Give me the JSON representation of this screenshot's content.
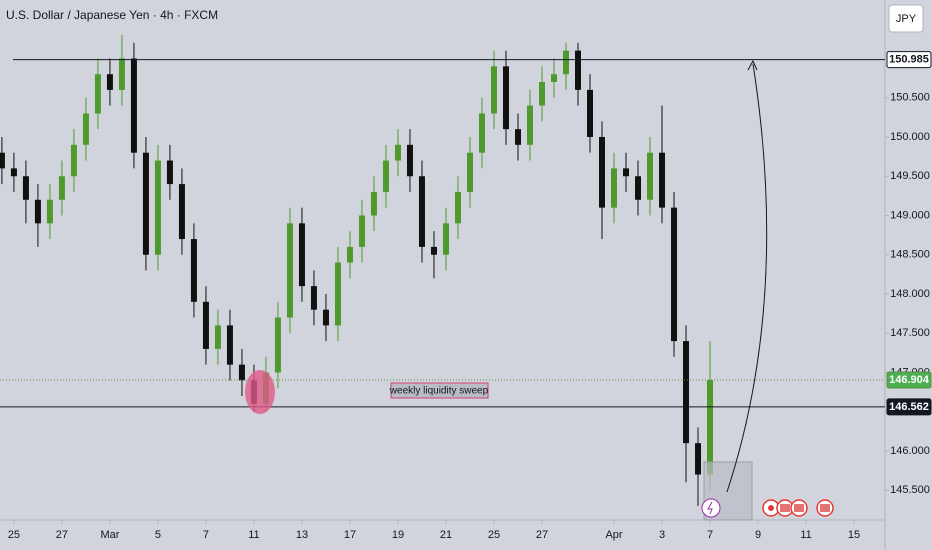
{
  "chart_data": {
    "type": "candlestick",
    "title": "U.S. Dollar / Japanese Yen · 4h · FXCM",
    "up_color": "#4e9a2e",
    "down_color": "#111111",
    "x": [
      -0.5,
      0,
      0.5,
      1,
      1.5,
      2,
      2.5,
      3,
      3.5,
      4,
      4.5,
      5,
      5.5,
      6,
      6.5,
      7,
      7.5,
      8,
      8.5,
      9,
      9.5,
      10,
      10.5,
      11,
      11.5,
      12,
      12.5,
      13,
      13.5,
      14,
      14.5,
      15,
      15.5,
      16,
      16.5,
      17,
      17.5,
      18,
      18.5,
      19,
      19.5,
      20,
      20.5,
      21,
      21.5,
      22,
      22.5,
      23,
      23.5,
      24,
      24.5,
      25,
      25.5,
      26,
      26.5,
      27,
      27.5,
      28,
      28.5,
      29
    ],
    "open": [
      149.8,
      149.6,
      149.5,
      149.2,
      148.9,
      149.2,
      149.5,
      149.9,
      150.3,
      150.8,
      150.6,
      151.0,
      149.8,
      148.5,
      149.7,
      149.4,
      148.7,
      147.9,
      147.3,
      147.6,
      147.1,
      146.9,
      146.6,
      147.0,
      147.7,
      148.9,
      148.1,
      147.8,
      147.6,
      148.4,
      148.6,
      149.0,
      149.3,
      149.7,
      149.9,
      149.5,
      148.6,
      148.5,
      148.9,
      149.3,
      149.8,
      150.3,
      150.9,
      150.1,
      149.9,
      150.4,
      150.7,
      150.8,
      151.1,
      150.6,
      150.0,
      149.1,
      149.6,
      149.5,
      149.2,
      149.8,
      149.1,
      147.4,
      146.1,
      145.7
    ],
    "high": [
      150.0,
      149.8,
      149.7,
      149.4,
      149.4,
      149.7,
      150.1,
      150.5,
      151.0,
      151.0,
      151.3,
      151.2,
      150.0,
      149.9,
      149.9,
      149.6,
      148.9,
      148.1,
      147.8,
      147.8,
      147.3,
      147.1,
      147.2,
      147.9,
      149.1,
      149.1,
      148.3,
      148.0,
      148.6,
      148.8,
      149.2,
      149.5,
      149.9,
      150.1,
      150.1,
      149.7,
      148.8,
      149.1,
      149.5,
      150.0,
      150.5,
      151.1,
      151.1,
      150.3,
      150.6,
      150.9,
      151.0,
      151.2,
      151.2,
      150.8,
      150.2,
      149.8,
      149.8,
      149.7,
      150.0,
      150.4,
      149.3,
      147.6,
      146.3,
      147.4
    ],
    "low": [
      149.4,
      149.3,
      148.9,
      148.6,
      148.7,
      149.0,
      149.3,
      149.7,
      150.1,
      150.4,
      150.4,
      149.6,
      148.3,
      148.3,
      149.2,
      148.5,
      147.7,
      147.1,
      147.1,
      146.9,
      146.7,
      146.5,
      146.5,
      146.8,
      147.5,
      147.9,
      147.6,
      147.4,
      147.4,
      148.2,
      148.4,
      148.8,
      149.1,
      149.5,
      149.3,
      148.4,
      148.2,
      148.3,
      148.7,
      149.1,
      149.6,
      150.1,
      149.9,
      149.7,
      149.7,
      150.2,
      150.5,
      150.6,
      150.4,
      149.8,
      148.7,
      148.9,
      149.3,
      149.0,
      149.0,
      148.9,
      147.2,
      145.6,
      145.3,
      145.5
    ],
    "close": [
      149.6,
      149.5,
      149.2,
      148.9,
      149.2,
      149.5,
      149.9,
      150.3,
      150.8,
      150.6,
      151.0,
      149.8,
      148.5,
      149.7,
      149.4,
      148.7,
      147.9,
      147.3,
      147.6,
      147.1,
      146.9,
      146.6,
      147.0,
      147.7,
      148.9,
      148.1,
      147.8,
      147.6,
      148.4,
      148.6,
      149.0,
      149.3,
      149.7,
      149.9,
      149.5,
      148.6,
      148.5,
      148.9,
      149.3,
      149.8,
      150.3,
      150.9,
      150.1,
      149.9,
      150.4,
      150.7,
      150.8,
      151.1,
      150.6,
      150.0,
      149.1,
      149.6,
      149.5,
      149.2,
      149.8,
      149.1,
      147.4,
      146.1,
      145.7,
      146.904
    ],
    "xlim": [
      -0.58,
      36.29
    ],
    "xticks": [
      {
        "value": 0,
        "label": "25"
      },
      {
        "value": 2,
        "label": "27"
      },
      {
        "value": 4,
        "label": "Mar"
      },
      {
        "value": 6,
        "label": "5"
      },
      {
        "value": 8,
        "label": "7"
      },
      {
        "value": 10,
        "label": "11"
      },
      {
        "value": 12,
        "label": "13"
      },
      {
        "value": 14,
        "label": "17"
      },
      {
        "value": 16,
        "label": "19"
      },
      {
        "value": 18,
        "label": "21"
      },
      {
        "value": 20,
        "label": "25"
      },
      {
        "value": 22,
        "label": "27"
      },
      {
        "value": 25,
        "label": "Apr"
      },
      {
        "value": 27,
        "label": "3"
      },
      {
        "value": 29,
        "label": "7"
      },
      {
        "value": 31,
        "label": "9"
      },
      {
        "value": 33,
        "label": "11"
      },
      {
        "value": 35,
        "label": "15"
      }
    ],
    "ylim": [
      145.121,
      151.745
    ],
    "yticks": [
      {
        "value": 145.5,
        "label": "145.500"
      },
      {
        "value": 146,
        "label": "146.000"
      },
      {
        "value": 146.5,
        "label": "146.500"
      },
      {
        "value": 147,
        "label": "147.000"
      },
      {
        "value": 147.5,
        "label": "147.500"
      },
      {
        "value": 148,
        "label": "148.000"
      },
      {
        "value": 148.5,
        "label": "148.500"
      },
      {
        "value": 149,
        "label": "149.000"
      },
      {
        "value": 149.5,
        "label": "149.500"
      },
      {
        "value": 150,
        "label": "150.000"
      },
      {
        "value": 150.5,
        "label": "150.500"
      }
    ],
    "levels": [
      {
        "price": 150.985,
        "color": "#131722",
        "style": "solid",
        "label_fill": "#ffffff",
        "label_text": "#131722"
      },
      {
        "price": 146.904,
        "color": "#5b8f4a",
        "style": "dotted",
        "label_fill": "#4caf50",
        "label_text": "#ffffff"
      },
      {
        "price": 146.562,
        "color": "#131722",
        "style": "solid",
        "label_fill": "#131722",
        "label_text": "#ffffff"
      }
    ],
    "annotation": "weekly liquidity sweep"
  },
  "ui": {
    "currency": "JPY"
  }
}
